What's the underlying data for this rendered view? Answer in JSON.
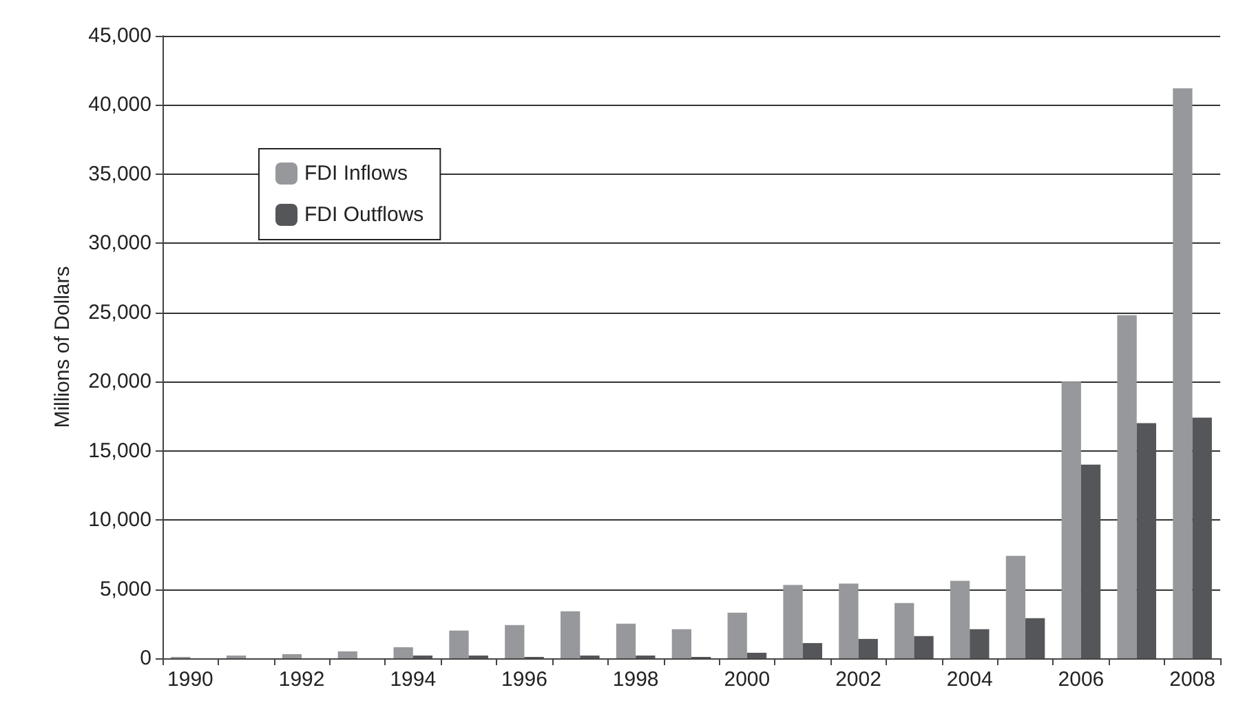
{
  "chart_data": {
    "type": "bar",
    "ylabel": "Millions of Dollars",
    "categories": [
      "1990",
      null,
      "1992",
      null,
      "1994",
      null,
      "1996",
      null,
      "1998",
      null,
      "2000",
      null,
      "2002",
      null,
      "2004",
      null,
      "2006",
      null,
      "2008"
    ],
    "series": [
      {
        "name": "FDI Inflows",
        "color": "#97989c",
        "values": [
          100,
          200,
          300,
          500,
          800,
          2000,
          2400,
          3400,
          2500,
          2100,
          3300,
          5300,
          5400,
          4000,
          5600,
          7400,
          20000,
          24800,
          41200
        ]
      },
      {
        "name": "FDI Outflows",
        "color": "#555659",
        "values": [
          0,
          0,
          0,
          0,
          200,
          200,
          100,
          200,
          200,
          100,
          400,
          1100,
          1400,
          1600,
          2100,
          2900,
          14000,
          17000,
          17400
        ]
      }
    ],
    "ylim": [
      0,
      45000
    ],
    "yticks": [
      0,
      {
        "value": 5000,
        "label": "5,000"
      },
      {
        "value": 10000,
        "label": "10,000"
      },
      {
        "value": 15000,
        "label": "15,000"
      },
      {
        "value": 20000,
        "label": "20,000"
      },
      {
        "value": 25000,
        "label": "25,000"
      },
      {
        "value": 30000,
        "label": "30,000"
      },
      {
        "value": 35000,
        "label": "35,000"
      },
      {
        "value": 40000,
        "label": "40,000"
      },
      {
        "value": 45000,
        "label": "45,000"
      }
    ],
    "grid": "y",
    "legend": "top left"
  }
}
